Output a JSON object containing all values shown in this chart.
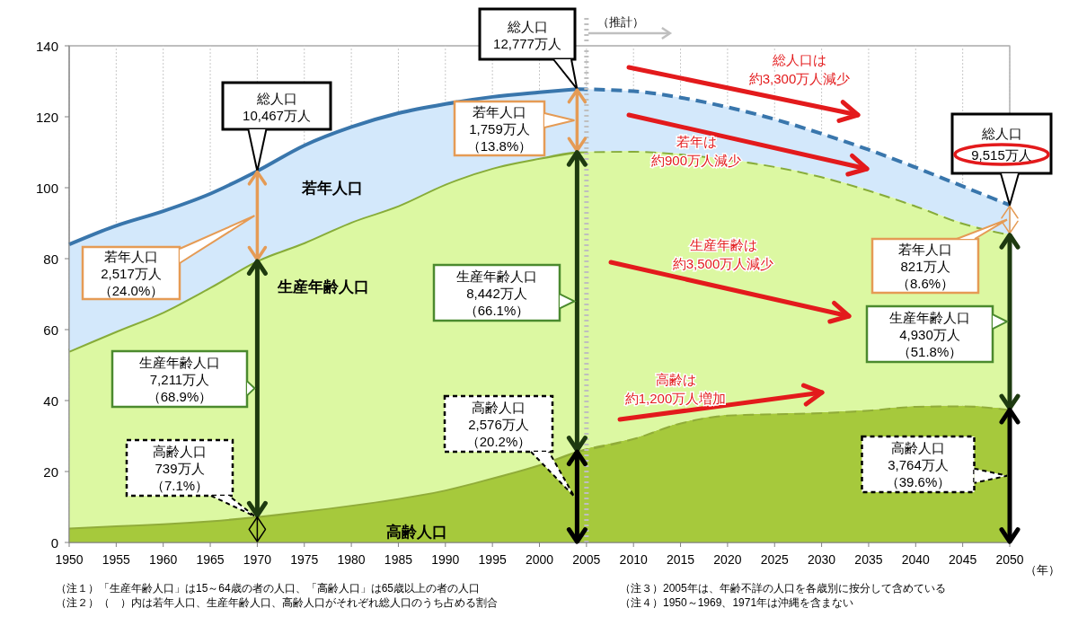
{
  "chart_data": {
    "type": "area",
    "stacked": true,
    "xlabel": "（年）",
    "x": [
      1950,
      1955,
      1960,
      1965,
      1970,
      1975,
      1980,
      1985,
      1990,
      1995,
      2000,
      2004,
      2010,
      2015,
      2020,
      2025,
      2030,
      2035,
      2040,
      2045,
      2050
    ],
    "series": [
      {
        "name": "高齢人口",
        "color": "#a6c93c",
        "values": [
          4.2,
          4.8,
          5.4,
          6.2,
          7.4,
          8.9,
          10.6,
          12.5,
          14.9,
          18.3,
          22.0,
          25.8,
          29.4,
          33.8,
          36.0,
          36.4,
          36.7,
          37.4,
          38.5,
          38.6,
          37.6
        ]
      },
      {
        "name": "生産年齢人口",
        "color": "#dcf8a2",
        "values": [
          49.8,
          54.8,
          59.6,
          65.8,
          72.1,
          75.7,
          79.8,
          82.5,
          86.2,
          87.3,
          86.4,
          84.4,
          81.0,
          75.8,
          72.1,
          69.7,
          66.5,
          62.0,
          56.5,
          51.5,
          49.3
        ]
      },
      {
        "name": "若年人口",
        "color": "#d3e8fb",
        "values": [
          30.0,
          29.7,
          28.4,
          26.3,
          25.2,
          27.3,
          26.7,
          26.0,
          22.5,
          20.0,
          18.5,
          17.6,
          16.8,
          15.8,
          14.6,
          13.2,
          12.0,
          11.3,
          10.7,
          10.3,
          8.2
        ]
      }
    ],
    "xlim": [
      1950,
      2050
    ],
    "xticks": [
      1950,
      1955,
      1960,
      1965,
      1970,
      1975,
      1980,
      1985,
      1990,
      1995,
      2000,
      2005,
      2010,
      2015,
      2020,
      2025,
      2030,
      2035,
      2040,
      2045,
      2050
    ],
    "ylim": [
      0,
      140
    ],
    "yticks": [
      0,
      20,
      40,
      60,
      80,
      100,
      120,
      140
    ],
    "grid": "x",
    "ref_lines": [
      {
        "axis": "x",
        "value": 2005,
        "label": "（推計）",
        "color": "#bfbfbf",
        "line_style": "dotted"
      }
    ],
    "annotations": [
      {
        "text": "総人口10,467万人",
        "x": 1970,
        "y": 104.67
      },
      "若年人口2,517万人（24.0%）",
      "生産年齢人口7,211万人（68.9%）",
      "高齢人口739万人（7.1%）",
      "総人口12,777万人",
      "若年人口1,759万人（13.8%）",
      "生産年齢人口8,442万人（66.1%）",
      "高齢人口2,576万人（20.2%）",
      "総人口9,515万人",
      "若年人口821万人（8.6%）",
      "生産年齢人口4,930万人（51.8%）",
      "高齢人口3,764万人（39.6%）",
      "総人口は約3,300万人減少",
      "若年は約900万人減少",
      "生産年齢は約3,500万人減少",
      "高齢は約1,200万人増加",
      "（注１）「生産年齢人口」は15～64歳の者の人口、「高齢人口」は65歳以上の者の人口",
      "（注２）（　）内は若年人口、生産年齢人口、高齢人口がそれぞれ総人口のうち占める割合",
      "（注３）2005年は、年齢不詳の人口を各歳別に按分して含めている",
      "（注４）1950～1969、1971年は沖縄を含まない"
    ]
  }
}
